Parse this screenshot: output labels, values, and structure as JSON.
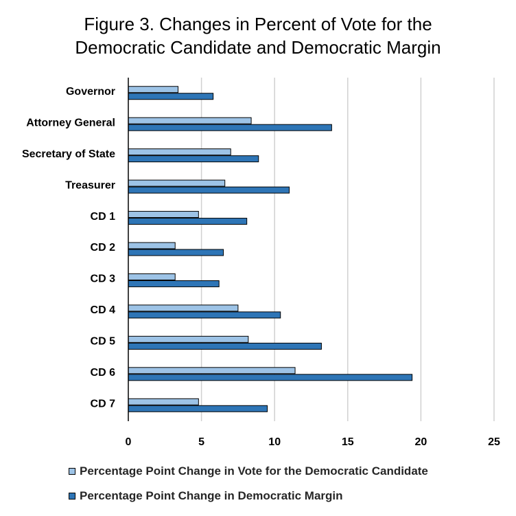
{
  "chart_data": {
    "type": "bar",
    "orientation": "horizontal",
    "title_lines": [
      "Figure 3. Changes in Percent of Vote for the",
      "Democratic Candidate and Democratic Margin"
    ],
    "categories": [
      "Governor",
      "Attorney General",
      "Secretary of State",
      "Treasurer",
      "CD 1",
      "CD 2",
      "CD 3",
      "CD 4",
      "CD 5",
      "CD 6",
      "CD 7"
    ],
    "series": [
      {
        "name": "Percentage Point Change in Vote for the Democratic Candidate",
        "color": "#9DC3E6",
        "values": [
          3.4,
          8.4,
          7.0,
          6.6,
          4.8,
          3.2,
          3.2,
          7.5,
          8.2,
          11.4,
          4.8
        ]
      },
      {
        "name": "Percentage Point Change in Democratic Margin",
        "color": "#2E75B6",
        "values": [
          5.8,
          13.9,
          8.9,
          11.0,
          8.1,
          6.5,
          6.2,
          10.4,
          13.2,
          19.4,
          9.5
        ]
      }
    ],
    "xlim": [
      0,
      25
    ],
    "xticks": [
      "0",
      "5",
      "10",
      "15",
      "20",
      "25"
    ],
    "grid": true,
    "legend_position": "bottom"
  }
}
